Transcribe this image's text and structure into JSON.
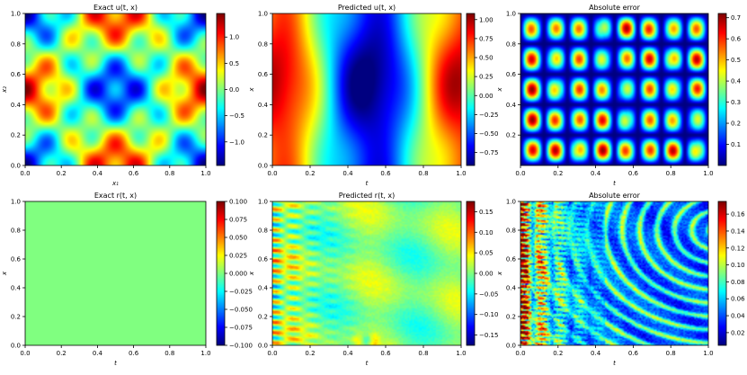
{
  "chart_data": [
    {
      "type": "heatmap",
      "title": "Exact u(t, x)",
      "xlabel": "x₁",
      "ylabel": "x₂",
      "xlim": [
        0,
        1
      ],
      "ylim": [
        0,
        1
      ],
      "x_ticks": [
        "0.0",
        "0.2",
        "0.4",
        "0.6",
        "0.8",
        "1.0"
      ],
      "y_ticks": [
        "0.0",
        "0.2",
        "0.4",
        "0.6",
        "0.8",
        "1.0"
      ],
      "colorbar": {
        "min": -1.45,
        "max": 1.45,
        "ticks": [
          1.0,
          0.5,
          0.0,
          -0.5,
          -1.0
        ],
        "tick_labels": [
          "1.0",
          "0.5",
          "0.0",
          "−0.5",
          "−1.0"
        ]
      },
      "field": "exact_u",
      "colormap": "jet"
    },
    {
      "type": "heatmap",
      "title": "Predicted u(t, x)",
      "xlabel": "t",
      "ylabel": "x",
      "xlim": [
        0,
        1
      ],
      "ylim": [
        0,
        1
      ],
      "x_ticks": [
        "0.0",
        "0.2",
        "0.4",
        "0.6",
        "0.8",
        "1.0"
      ],
      "y_ticks": [
        "0.0",
        "0.2",
        "0.4",
        "0.6",
        "0.8",
        "1.0"
      ],
      "colorbar": {
        "min": -0.92,
        "max": 1.08,
        "ticks": [
          1.0,
          0.75,
          0.5,
          0.25,
          0.0,
          -0.25,
          -0.5,
          -0.75
        ],
        "tick_labels": [
          "1.00",
          "0.75",
          "0.50",
          "0.25",
          "0.00",
          "−0.25",
          "−0.50",
          "−0.75"
        ]
      },
      "field": "pred_u",
      "colormap": "jet"
    },
    {
      "type": "heatmap",
      "title": "Absolute error",
      "xlabel": "t",
      "ylabel": "x",
      "xlim": [
        0,
        1
      ],
      "ylim": [
        0,
        1
      ],
      "x_ticks": [
        "0.0",
        "0.2",
        "0.4",
        "0.6",
        "0.8",
        "1.0"
      ],
      "y_ticks": [
        "0.2",
        "0.4",
        "0.6",
        "0.8",
        "1.0"
      ],
      "colorbar": {
        "min": 0.0,
        "max": 0.72,
        "ticks": [
          0.7,
          0.6,
          0.5,
          0.4,
          0.3,
          0.2,
          0.1
        ],
        "tick_labels": [
          "0.7",
          "0.6",
          "0.5",
          "0.4",
          "0.3",
          "0.2",
          "0.1"
        ]
      },
      "field": "err_u",
      "colormap": "jet"
    },
    {
      "type": "heatmap",
      "title": "Exact r(t, x)",
      "xlabel": "t",
      "ylabel": "x",
      "xlim": [
        0,
        1
      ],
      "ylim": [
        0,
        1
      ],
      "x_ticks": [
        "0.0",
        "0.2",
        "0.4",
        "0.6",
        "0.8",
        "1.0"
      ],
      "y_ticks": [
        "0.0",
        "0.2",
        "0.4",
        "0.6",
        "0.8",
        "1.0"
      ],
      "colorbar": {
        "min": -0.1,
        "max": 0.1,
        "ticks": [
          0.1,
          0.075,
          0.05,
          0.025,
          0.0,
          -0.025,
          -0.05,
          -0.075,
          -0.1
        ],
        "tick_labels": [
          "0.100",
          "0.075",
          "0.050",
          "0.025",
          "0.000",
          "−0.025",
          "−0.050",
          "−0.075",
          "−0.100"
        ]
      },
      "field": "exact_r",
      "colormap": "jet"
    },
    {
      "type": "heatmap",
      "title": "Predicted r(t, x)",
      "xlabel": "t",
      "ylabel": "x",
      "xlim": [
        0,
        1
      ],
      "ylim": [
        0,
        1
      ],
      "x_ticks": [
        "0.0",
        "0.2",
        "0.4",
        "0.6",
        "0.8",
        "1.0"
      ],
      "y_ticks": [
        "0.0",
        "0.2",
        "0.4",
        "0.6",
        "0.8",
        "1.0"
      ],
      "colorbar": {
        "min": -0.175,
        "max": 0.175,
        "ticks": [
          0.15,
          0.1,
          0.05,
          0.0,
          -0.05,
          -0.1,
          -0.15
        ],
        "tick_labels": [
          "0.15",
          "0.10",
          "0.05",
          "0.00",
          "−0.05",
          "−0.10",
          "−0.15"
        ]
      },
      "field": "pred_r",
      "colormap": "jet"
    },
    {
      "type": "heatmap",
      "title": "Absolute error",
      "xlabel": "t",
      "ylabel": "x",
      "xlim": [
        0,
        1
      ],
      "ylim": [
        0,
        1
      ],
      "x_ticks": [
        "0.0",
        "0.2",
        "0.4",
        "0.6",
        "0.8",
        "1.0"
      ],
      "y_ticks": [
        "0.0",
        "0.2",
        "0.4",
        "0.6",
        "0.8",
        "1.0"
      ],
      "colorbar": {
        "min": 0.005,
        "max": 0.175,
        "ticks": [
          0.16,
          0.14,
          0.12,
          0.1,
          0.08,
          0.06,
          0.04,
          0.02
        ],
        "tick_labels": [
          "0.16",
          "0.14",
          "0.12",
          "0.10",
          "0.08",
          "0.06",
          "0.04",
          "0.02"
        ]
      },
      "field": "err_r",
      "colormap": "jet"
    }
  ]
}
